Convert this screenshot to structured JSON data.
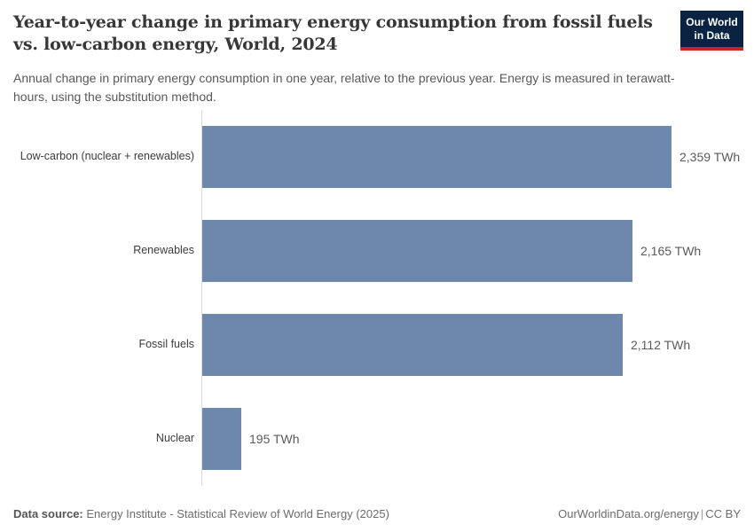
{
  "header": {
    "title": "Year-to-year change in primary energy consumption from fossil fuels vs. low-carbon energy, World, 2024",
    "title_line1": "Year-to-year change in primary energy consumption from fossil fuels",
    "title_line2": "vs. low-carbon energy, World, 2024",
    "subtitle": "Annual change in primary energy consumption in one year, relative to the previous year. Energy is measured in terawatt-hours, using the substitution method."
  },
  "logo": {
    "line1": "Our World",
    "line2": "in Data",
    "bg_color": "#0a2343",
    "accent_color": "#cb2120"
  },
  "chart_data": {
    "type": "bar",
    "orientation": "horizontal",
    "title": "Year-to-year change in primary energy consumption from fossil fuels vs. low-carbon energy, World, 2024",
    "categories": [
      "Low-carbon (nuclear + renewables)",
      "Renewables",
      "Fossil fuels",
      "Nuclear"
    ],
    "values": [
      2359,
      2165,
      2112,
      195
    ],
    "value_labels": [
      "2,359 TWh",
      "2,165 TWh",
      "2,112 TWh",
      "195 TWh"
    ],
    "unit": "TWh",
    "xlim": [
      0,
      2359
    ],
    "grid": false,
    "legend": "none",
    "bar_color": "#6e87ad",
    "axis_color": "#dcdcdc"
  },
  "footer": {
    "data_source_label": "Data source:",
    "data_source_value": "Energy Institute - Statistical Review of World Energy (2025)",
    "site_url": "OurWorldinData.org/energy",
    "separator": "|",
    "license": "CC BY"
  }
}
